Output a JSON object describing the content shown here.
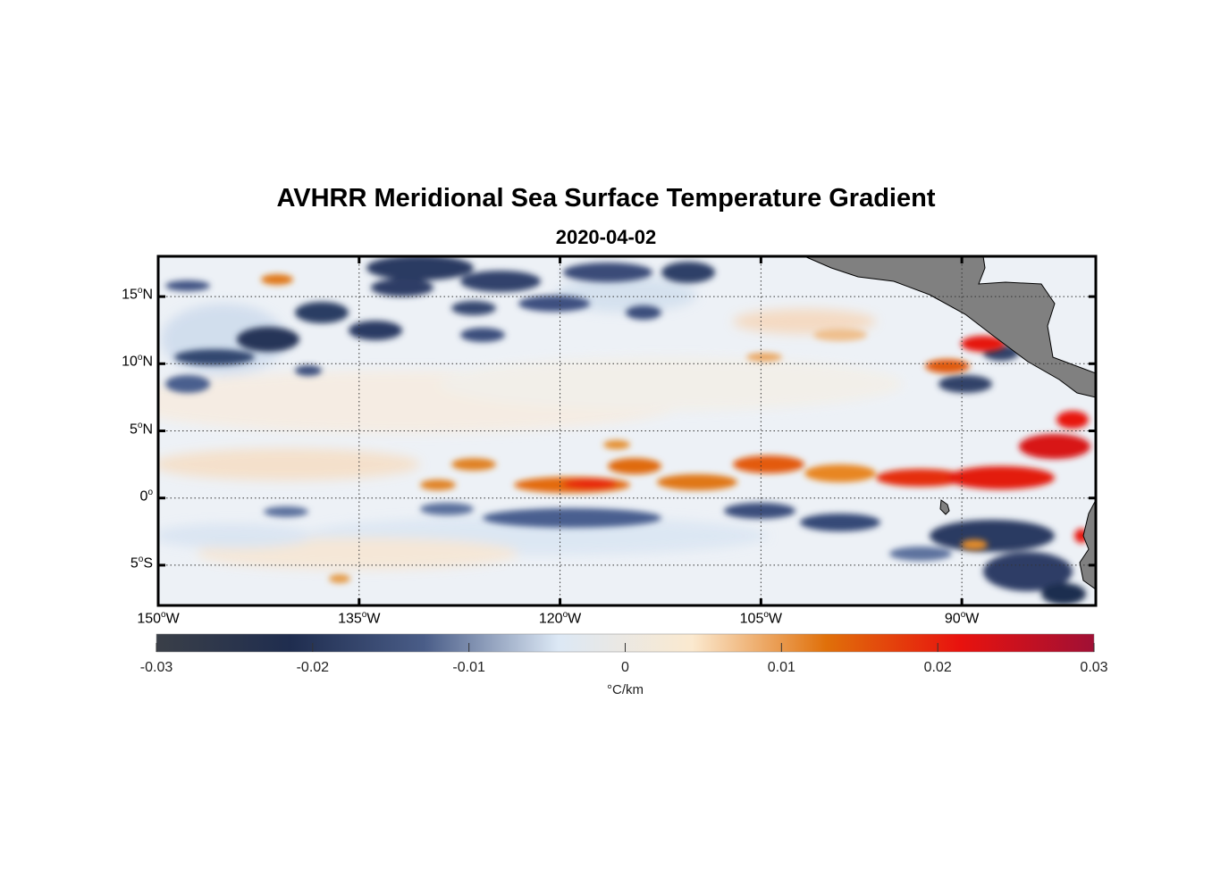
{
  "title": "AVHRR Meridional Sea Surface Temperature Gradient",
  "subtitle": "2020-04-02",
  "map": {
    "lat_labels": [
      {
        "deg": "15",
        "hemi": "N",
        "lat": 15
      },
      {
        "deg": "10",
        "hemi": "N",
        "lat": 10
      },
      {
        "deg": "5",
        "hemi": "N",
        "lat": 5
      },
      {
        "deg": "0",
        "hemi": "",
        "lat": 0
      },
      {
        "deg": "5",
        "hemi": "S",
        "lat": -5
      }
    ],
    "lon_labels": [
      {
        "deg": "150",
        "hemi": "W",
        "lon": -150
      },
      {
        "deg": "135",
        "hemi": "W",
        "lon": -135
      },
      {
        "deg": "120",
        "hemi": "W",
        "lon": -120
      },
      {
        "deg": "105",
        "hemi": "W",
        "lon": -105
      },
      {
        "deg": "90",
        "hemi": "W",
        "lon": -90
      }
    ],
    "lon_range": [
      -150,
      -80
    ],
    "lat_range": [
      -8,
      18
    ],
    "land_color": "#808080",
    "grid": "dotted"
  },
  "colorbar": {
    "ticks": [
      "-0.03",
      "-0.02",
      "-0.01",
      "0",
      "0.01",
      "0.02",
      "0.03"
    ],
    "unit": "°C/km",
    "range": [
      -0.03,
      0.03
    ],
    "colors": [
      "#3a3f48",
      "#1f2d4f",
      "#4a5d88",
      "#dce8f5",
      "#fbe9cf",
      "#e0700a",
      "#e8120e",
      "#a01035"
    ]
  }
}
